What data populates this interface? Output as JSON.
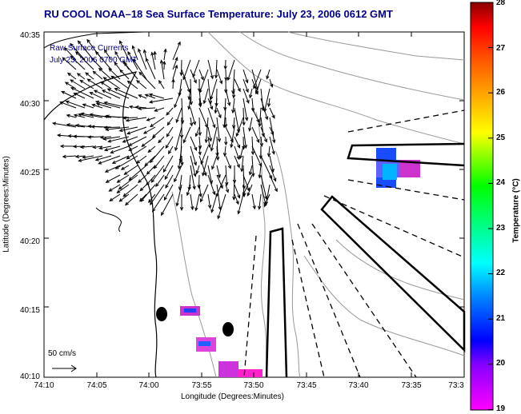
{
  "title": "RU COOL  NOAA–18  Sea Surface Temperature:  July 23, 2006 0612 GMT",
  "axes": {
    "xlabel": "Longitude (Degrees:Minutes)",
    "ylabel": "Latitude (Degrees:Minutes)",
    "xticks": [
      "74:10",
      "74:05",
      "74:00",
      "73:55",
      "73:50",
      "73:45",
      "73:40",
      "73:35",
      "73:3"
    ],
    "yticks": [
      "40:35",
      "40:30",
      "40:25",
      "40:20",
      "40:15",
      "40:10"
    ]
  },
  "legend": {
    "line1": "Raw Surface Currents",
    "line2": "July 23, 2006 0700 GMT"
  },
  "scale": {
    "label": "50 cm/s"
  },
  "colorbar": {
    "label": "Temperature (°C)",
    "ticks": [
      "28",
      "27",
      "26",
      "25",
      "24",
      "23",
      "22",
      "21",
      "20",
      "19"
    ],
    "min": 19,
    "max": 28,
    "colors": [
      "#ff00ff",
      "#8800ff",
      "#0000ff",
      "#0088ff",
      "#00ffff",
      "#00ff88",
      "#00ff00",
      "#88ff00",
      "#ffff00",
      "#ffaa00",
      "#ff5500",
      "#ff0000",
      "#880000"
    ]
  }
}
